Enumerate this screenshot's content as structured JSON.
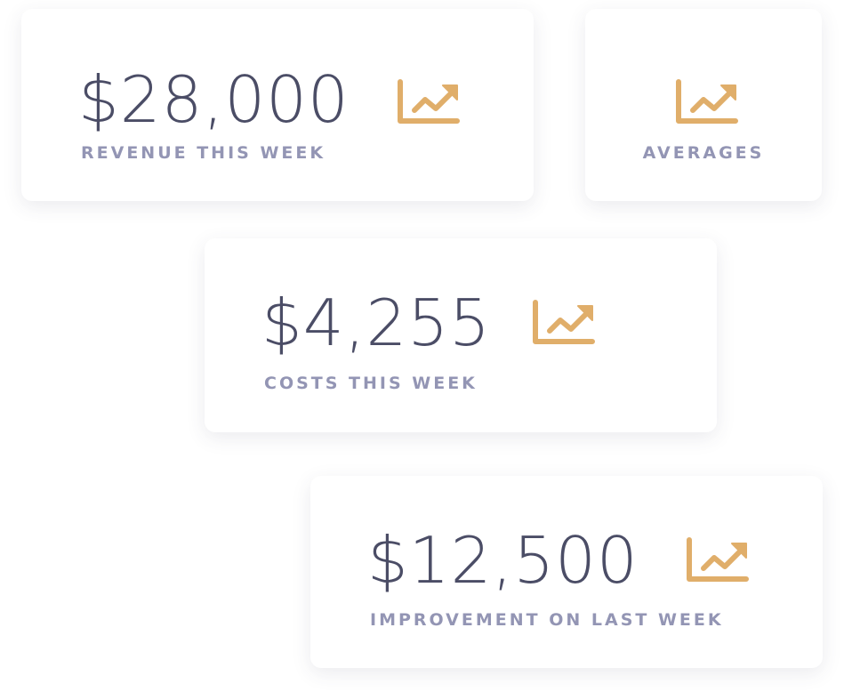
{
  "accent_color": "#e0ae6a",
  "cards": [
    {
      "value": "$28,000",
      "label": "REVENUE THIS WEEK",
      "icon": "trending-up-chart-icon"
    },
    {
      "value": "",
      "label": "AVERAGES",
      "icon": "trending-up-chart-icon"
    },
    {
      "value": "$4,255",
      "label": "COSTS THIS WEEK",
      "icon": "trending-up-chart-icon"
    },
    {
      "value": "$12,500",
      "label": "IMPROVEMENT ON LAST WEEK",
      "icon": "trending-up-chart-icon"
    }
  ]
}
